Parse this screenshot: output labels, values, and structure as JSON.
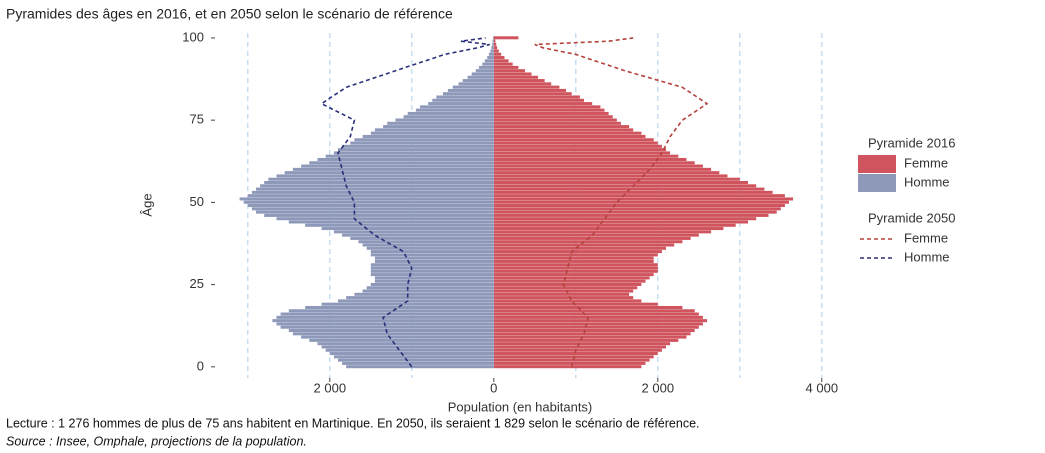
{
  "chart_data": {
    "type": "pyramid",
    "title": "Pyramides des âges en 2016, et en 2050 selon le scénario de référence",
    "x_label": "Population (en habitants)",
    "y_label": "Âge",
    "notes": [
      "Lecture : 1 276 hommes de plus de 75 ans habitent en Martinique. En 2050, ils seraient 1 829 selon le scénario de référence.",
      "Source : Insee, Omphale, projections de la population."
    ],
    "xlim": [
      -3400,
      4100
    ],
    "xticks": [
      {
        "value": -2000,
        "label": "2 000"
      },
      0,
      {
        "value": 2000,
        "label": "2 000"
      },
      {
        "value": 4000,
        "label": "4 000"
      }
    ],
    "xgrid": [
      -3000,
      -2000,
      -1000,
      1000,
      2000,
      3000,
      4000
    ],
    "ylim": [
      -3.4,
      101.5
    ],
    "yticks": [
      0,
      25,
      50,
      75,
      100
    ],
    "y": [
      0,
      1,
      2,
      3,
      4,
      5,
      6,
      7,
      8,
      9,
      10,
      11,
      12,
      13,
      14,
      15,
      16,
      17,
      18,
      19,
      20,
      21,
      22,
      23,
      24,
      25,
      26,
      27,
      28,
      29,
      30,
      31,
      32,
      33,
      34,
      35,
      36,
      37,
      38,
      39,
      40,
      41,
      42,
      43,
      44,
      45,
      46,
      47,
      48,
      49,
      50,
      51,
      52,
      53,
      54,
      55,
      56,
      57,
      58,
      59,
      60,
      61,
      62,
      63,
      64,
      65,
      66,
      67,
      68,
      69,
      70,
      71,
      72,
      73,
      74,
      75,
      76,
      77,
      78,
      79,
      80,
      81,
      82,
      83,
      84,
      85,
      86,
      87,
      88,
      89,
      90,
      91,
      92,
      93,
      94,
      95,
      96,
      97,
      98,
      99,
      100
    ],
    "series_groups": [
      {
        "title": "Pyramide 2016",
        "style": "bar",
        "series": [
          {
            "name": "Femme",
            "color": "#d0545d",
            "values": [
              1800,
              1850,
              1900,
              1950,
              2000,
              2050,
              2100,
              2150,
              2250,
              2350,
              2400,
              2450,
              2500,
              2550,
              2600,
              2550,
              2500,
              2450,
              2300,
              2000,
              1800,
              1700,
              1650,
              1700,
              1750,
              1800,
              1850,
              1900,
              1950,
              2000,
              2000,
              2000,
              1950,
              1950,
              2000,
              2050,
              2100,
              2200,
              2300,
              2400,
              2500,
              2650,
              2800,
              2950,
              3100,
              3200,
              3350,
              3450,
              3500,
              3550,
              3600,
              3650,
              3550,
              3400,
              3300,
              3200,
              3100,
              3000,
              2850,
              2750,
              2650,
              2550,
              2450,
              2350,
              2250,
              2150,
              2100,
              2050,
              2000,
              1950,
              1850,
              1800,
              1700,
              1650,
              1550,
              1500,
              1450,
              1400,
              1350,
              1300,
              1200,
              1100,
              1050,
              950,
              880,
              800,
              700,
              620,
              540,
              460,
              380,
              300,
              230,
              180,
              130,
              90,
              60,
              40,
              30,
              20,
              300
            ]
          },
          {
            "name": "Homme",
            "color": "#8e98b9",
            "values": [
              -1800,
              -1850,
              -1900,
              -1950,
              -2000,
              -2050,
              -2100,
              -2150,
              -2250,
              -2350,
              -2450,
              -2500,
              -2600,
              -2650,
              -2700,
              -2650,
              -2600,
              -2500,
              -2300,
              -2100,
              -1900,
              -1800,
              -1700,
              -1600,
              -1550,
              -1500,
              -1450,
              -1450,
              -1500,
              -1500,
              -1500,
              -1500,
              -1450,
              -1450,
              -1500,
              -1500,
              -1550,
              -1600,
              -1650,
              -1750,
              -1850,
              -1950,
              -2100,
              -2300,
              -2500,
              -2650,
              -2800,
              -2900,
              -2950,
              -3000,
              -3050,
              -3100,
              -3000,
              -2950,
              -2900,
              -2850,
              -2800,
              -2750,
              -2650,
              -2550,
              -2450,
              -2350,
              -2250,
              -2150,
              -2050,
              -1950,
              -1900,
              -1850,
              -1750,
              -1700,
              -1600,
              -1500,
              -1450,
              -1350,
              -1300,
              -1200,
              -1100,
              -1050,
              -950,
              -900,
              -800,
              -750,
              -700,
              -620,
              -560,
              -500,
              -430,
              -380,
              -320,
              -270,
              -220,
              -180,
              -140,
              -110,
              -80,
              -60,
              -40,
              -30,
              -20,
              -15,
              -10
            ]
          }
        ]
      },
      {
        "title": "Pyramide 2050",
        "style": "dashed-line",
        "series": [
          {
            "name": "Femme",
            "color": "#b4423c",
            "values": [
              950,
              960,
              970,
              980,
              990,
              1000,
              1020,
              1040,
              1060,
              1080,
              1100,
              1110,
              1120,
              1130,
              1140,
              1150,
              1110,
              1070,
              1030,
              990,
              950,
              930,
              910,
              890,
              870,
              850,
              860,
              870,
              880,
              890,
              900,
              910,
              920,
              930,
              940,
              950,
              1000,
              1050,
              1100,
              1150,
              1200,
              1230,
              1260,
              1290,
              1320,
              1350,
              1380,
              1410,
              1440,
              1470,
              1500,
              1540,
              1580,
              1620,
              1660,
              1700,
              1740,
              1780,
              1820,
              1860,
              1900,
              1930,
              1960,
              1990,
              2020,
              2050,
              2070,
              2090,
              2110,
              2130,
              2150,
              2180,
              2210,
              2240,
              2270,
              2300,
              2360,
              2420,
              2480,
              2540,
              2600,
              2540,
              2480,
              2420,
              2360,
              2300,
              2160,
              2020,
              1880,
              1740,
              1600,
              1480,
              1360,
              1240,
              1120,
              1000,
              800,
              600,
              500,
              1400,
              1700
            ]
          },
          {
            "name": "Homme",
            "color": "#2a2f7a",
            "values": [
              -1000,
              -1030,
              -1060,
              -1090,
              -1120,
              -1150,
              -1180,
              -1210,
              -1240,
              -1270,
              -1300,
              -1310,
              -1320,
              -1330,
              -1340,
              -1350,
              -1290,
              -1230,
              -1170,
              -1110,
              -1050,
              -1050,
              -1050,
              -1050,
              -1050,
              -1050,
              -1040,
              -1030,
              -1020,
              -1010,
              -1000,
              -1020,
              -1040,
              -1060,
              -1080,
              -1100,
              -1170,
              -1240,
              -1310,
              -1380,
              -1450,
              -1500,
              -1550,
              -1600,
              -1650,
              -1700,
              -1700,
              -1700,
              -1700,
              -1700,
              -1700,
              -1720,
              -1740,
              -1760,
              -1780,
              -1800,
              -1810,
              -1820,
              -1830,
              -1840,
              -1850,
              -1860,
              -1870,
              -1880,
              -1890,
              -1900,
              -1870,
              -1840,
              -1810,
              -1780,
              -1750,
              -1740,
              -1730,
              -1720,
              -1710,
              -1700,
              -1780,
              -1860,
              -1940,
              -2020,
              -2100,
              -2040,
              -1980,
              -1920,
              -1860,
              -1800,
              -1680,
              -1560,
              -1440,
              -1320,
              -1200,
              -1080,
              -960,
              -840,
              -720,
              -600,
              -400,
              -200,
              -50,
              -400,
              -100
            ]
          }
        ]
      }
    ]
  }
}
